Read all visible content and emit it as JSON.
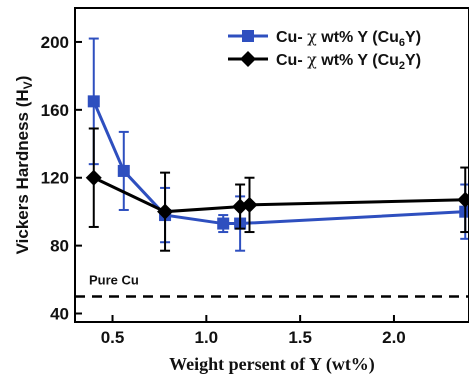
{
  "chart_data": {
    "type": "line",
    "xlabel": "Weight persent of Y (wt%)",
    "ylabel_main": "Vickers Hardness (H",
    "ylabel_sub": "V",
    "ylabel_close": ")",
    "xlim": [
      0.3,
      2.4
    ],
    "ylim": [
      35,
      220
    ],
    "x_ticks": [
      0.5,
      1.0,
      1.5,
      2.0
    ],
    "x_tick_labels": [
      "0.5",
      "1.0",
      "1.5",
      "2.0"
    ],
    "y_ticks": [
      40,
      80,
      120,
      160,
      200
    ],
    "y_tick_labels": [
      "40",
      "80",
      "120",
      "160",
      "200"
    ],
    "legend_position": "top-right",
    "series": [
      {
        "legend_prefix": "Cu- ",
        "legend_chi": "χ",
        "legend_mid": " wt% Y (Cu",
        "legend_sub": "6",
        "legend_end": "Y)",
        "color": "#2e4fbf",
        "marker": "square",
        "x": [
          0.4,
          0.56,
          0.78,
          1.09,
          1.18,
          2.38
        ],
        "y": [
          165,
          124,
          98,
          93,
          93,
          100
        ],
        "err": [
          37,
          23,
          16,
          5,
          16,
          16
        ]
      },
      {
        "legend_prefix": "Cu- ",
        "legend_chi": "χ",
        "legend_mid": " wt% Y (Cu",
        "legend_sub": "2",
        "legend_end": "Y)",
        "color": "#000000",
        "marker": "diamond",
        "x": [
          0.4,
          0.78,
          1.18,
          1.23,
          2.38
        ],
        "y": [
          120,
          100,
          103,
          104,
          107
        ],
        "err": [
          29,
          23,
          13,
          16,
          19
        ]
      }
    ],
    "reference_line": {
      "label": "Pure Cu",
      "y": 50,
      "style": "dashed",
      "color": "#000000"
    }
  }
}
